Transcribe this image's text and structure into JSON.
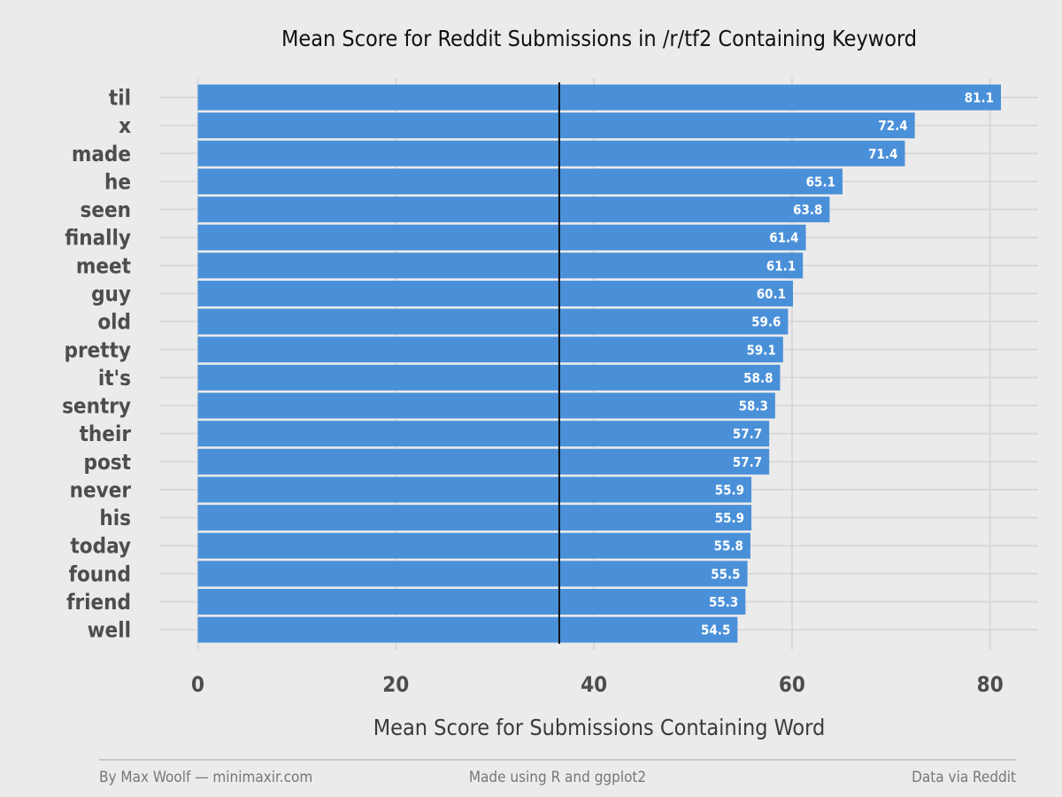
{
  "chart_data": {
    "type": "bar",
    "orientation": "horizontal",
    "title": "Mean Score for Reddit Submissions in /r/tf2 Containing Keyword",
    "xlabel": "Mean Score for Submissions Containing Word",
    "ylabel": "",
    "xlim": [
      0,
      85
    ],
    "xticks": [
      0,
      20,
      40,
      60,
      80
    ],
    "categories": [
      "til",
      "x",
      "made",
      "he",
      "seen",
      "finally",
      "meet",
      "guy",
      "old",
      "pretty",
      "it's",
      "sentry",
      "their",
      "post",
      "never",
      "his",
      "today",
      "found",
      "friend",
      "well"
    ],
    "values": [
      81.1,
      72.4,
      71.4,
      65.1,
      63.8,
      61.4,
      61.1,
      60.1,
      59.6,
      59.1,
      58.8,
      58.3,
      57.7,
      57.7,
      55.9,
      55.9,
      55.8,
      55.5,
      55.3,
      54.5
    ],
    "value_labels": [
      "81.1",
      "72.4",
      "71.4",
      "65.1",
      "63.8",
      "61.4",
      "61.1",
      "60.1",
      "59.6",
      "59.1",
      "58.8",
      "58.3",
      "57.7",
      "57.7",
      "55.9",
      "55.9",
      "55.8",
      "55.5",
      "55.3",
      "54.5"
    ],
    "reference_line_x": 36.5,
    "grid": true,
    "colors": {
      "bar": "#4a90d9",
      "background": "#ebebeb",
      "grid": "#d9d9d9",
      "reference_line": "#111111"
    }
  },
  "footer": {
    "left": "By Max Woolf — minimaxir.com",
    "center": "Made using R and ggplot2",
    "right": "Data via Reddit"
  }
}
